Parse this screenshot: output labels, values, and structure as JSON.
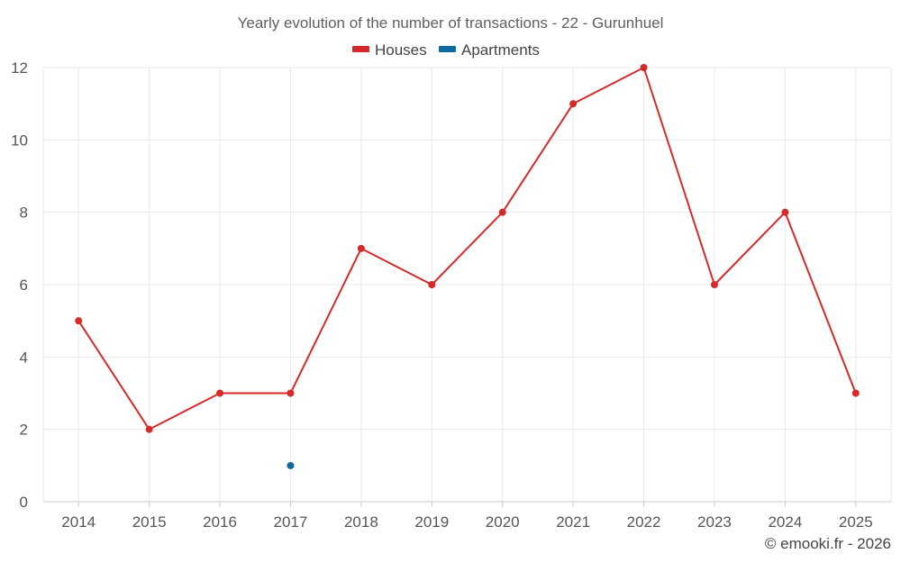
{
  "chart_data": {
    "type": "line",
    "title": "Yearly evolution of the number of transactions - 22 - Gurunhuel",
    "xlabel": "",
    "ylabel": "",
    "categories": [
      "2014",
      "2015",
      "2016",
      "2017",
      "2018",
      "2019",
      "2020",
      "2021",
      "2022",
      "2023",
      "2024",
      "2025"
    ],
    "ylim": [
      0,
      12
    ],
    "yticks": [
      0,
      2,
      4,
      6,
      8,
      10,
      12
    ],
    "grid": true,
    "legend_position": "top-center",
    "series": [
      {
        "name": "Houses",
        "color": "#d42a2a",
        "values": [
          5,
          2,
          3,
          3,
          7,
          6,
          8,
          11,
          12,
          6,
          8,
          3
        ]
      },
      {
        "name": "Apartments",
        "color": "#0f6a9e",
        "values": [
          null,
          null,
          null,
          1,
          null,
          null,
          null,
          null,
          null,
          null,
          null,
          null
        ]
      }
    ]
  },
  "credit": "© emooki.fr - 2026"
}
